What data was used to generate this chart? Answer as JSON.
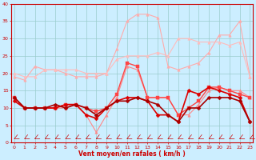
{
  "x": [
    0,
    1,
    2,
    3,
    4,
    5,
    6,
    7,
    8,
    9,
    10,
    11,
    12,
    13,
    14,
    15,
    16,
    17,
    18,
    19,
    20,
    21,
    22,
    23
  ],
  "series": [
    {
      "color": "#ffaaaa",
      "linewidth": 0.8,
      "marker": "^",
      "markersize": 2.5,
      "y": [
        19,
        18,
        22,
        21,
        21,
        20,
        19,
        19,
        19,
        20,
        27,
        35,
        37,
        37,
        36,
        22,
        21,
        22,
        23,
        26,
        31,
        31,
        35,
        19
      ]
    },
    {
      "color": "#ffbbbb",
      "linewidth": 0.8,
      "marker": "^",
      "markersize": 2.5,
      "y": [
        20,
        19,
        19,
        21,
        21,
        21,
        21,
        20,
        20,
        20,
        24,
        25,
        25,
        25,
        26,
        25,
        30,
        30,
        29,
        29,
        29,
        28,
        29,
        19
      ]
    },
    {
      "color": "#ff8888",
      "linewidth": 0.8,
      "marker": "^",
      "markersize": 2.5,
      "y": [
        13,
        10,
        10,
        10,
        10,
        10,
        11,
        8,
        3,
        8,
        13,
        22,
        21,
        13,
        13,
        13,
        8,
        8,
        11,
        15,
        16,
        15,
        15,
        13
      ]
    },
    {
      "color": "#ff4444",
      "linewidth": 1.0,
      "marker": "s",
      "markersize": 2.5,
      "y": [
        13,
        10,
        10,
        10,
        10,
        11,
        11,
        10,
        9,
        10,
        14,
        23,
        22,
        13,
        13,
        13,
        8,
        10,
        12,
        16,
        16,
        15,
        14,
        13
      ]
    },
    {
      "color": "#dd0000",
      "linewidth": 1.2,
      "marker": "D",
      "markersize": 2.5,
      "y": [
        12,
        10,
        10,
        10,
        10,
        11,
        11,
        8,
        7,
        10,
        12,
        13,
        13,
        12,
        8,
        8,
        6,
        15,
        14,
        16,
        15,
        14,
        13,
        6
      ]
    },
    {
      "color": "#aa0000",
      "linewidth": 1.2,
      "marker": "D",
      "markersize": 2.5,
      "y": [
        13,
        10,
        10,
        10,
        11,
        10,
        11,
        10,
        8,
        10,
        12,
        12,
        13,
        12,
        11,
        8,
        6,
        10,
        10,
        13,
        13,
        13,
        12,
        6
      ]
    }
  ],
  "xlabel": "Vent moyen/en rafales ( km/h )",
  "xlim": [
    -0.3,
    23.3
  ],
  "ylim": [
    0,
    40
  ],
  "yticks": [
    0,
    5,
    10,
    15,
    20,
    25,
    30,
    35,
    40
  ],
  "xticks": [
    0,
    1,
    2,
    3,
    4,
    5,
    6,
    7,
    8,
    9,
    10,
    11,
    12,
    13,
    14,
    15,
    16,
    17,
    18,
    19,
    20,
    21,
    22,
    23
  ],
  "bg_color": "#cceeff",
  "grid_color": "#99cccc",
  "xlabel_color": "#cc0000",
  "tick_color": "#cc0000",
  "spine_color": "#cc0000"
}
